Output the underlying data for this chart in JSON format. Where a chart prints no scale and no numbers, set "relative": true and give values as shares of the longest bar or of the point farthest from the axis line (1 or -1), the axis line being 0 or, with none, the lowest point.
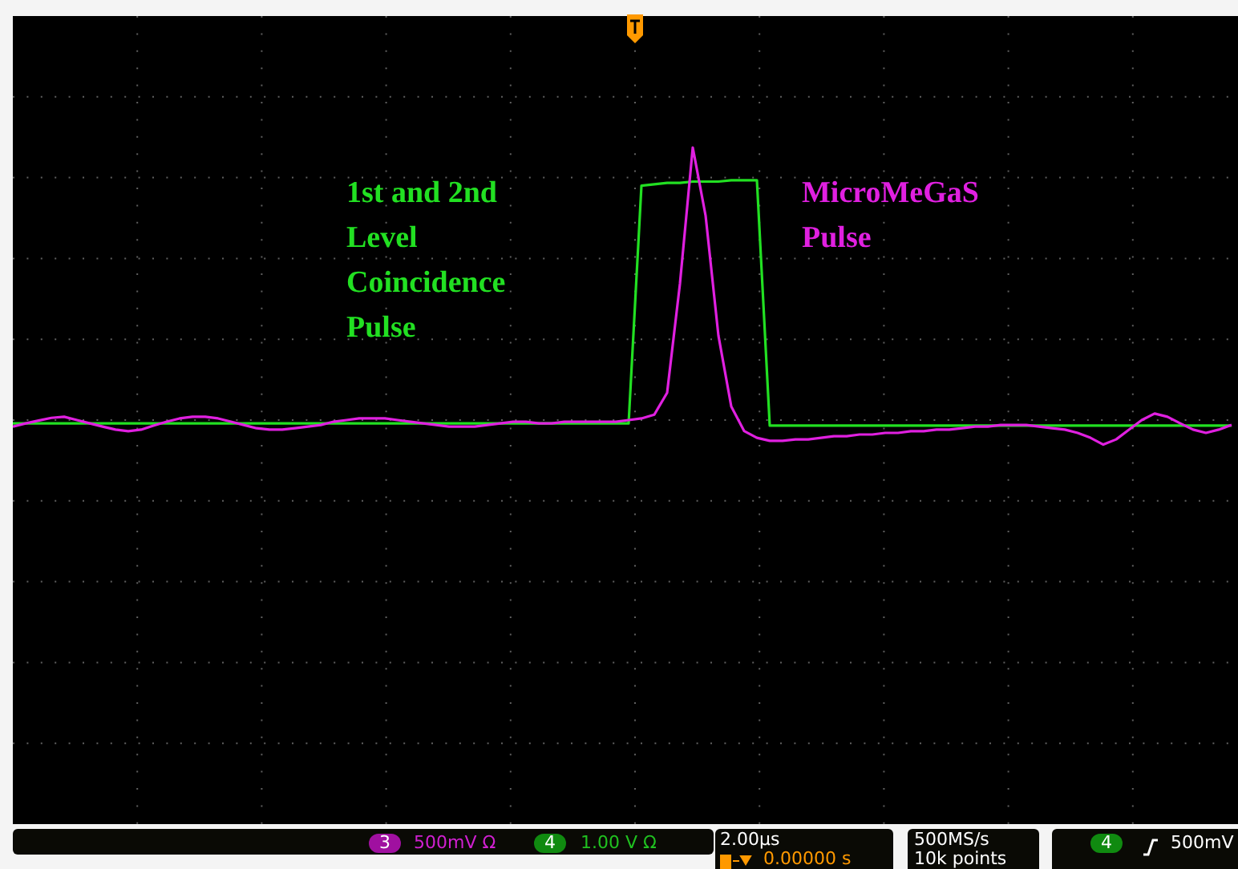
{
  "chart_data": {
    "type": "line",
    "relative": true,
    "grid": true,
    "legend": false,
    "marker": "none",
    "line_style": "solid",
    "categories": [
      null,
      null,
      null,
      null,
      null,
      null,
      null,
      null,
      null,
      null,
      null,
      null,
      null,
      null,
      null,
      null,
      null,
      null,
      null,
      null,
      null,
      null,
      null,
      null,
      null,
      null,
      null,
      null,
      null,
      null,
      null,
      null,
      null,
      null,
      null,
      null,
      null,
      null,
      null,
      null,
      null,
      null,
      null,
      null,
      null,
      null,
      null,
      null,
      null,
      null,
      null,
      null,
      null,
      null,
      null,
      null,
      null,
      null,
      null,
      null,
      null,
      null,
      null,
      null,
      null,
      null,
      null,
      null,
      null,
      null,
      null,
      null,
      null,
      null,
      null,
      null,
      null,
      null,
      null,
      null,
      null,
      null,
      null,
      null,
      null,
      null,
      null,
      null,
      null,
      null,
      null,
      null,
      null,
      null,
      null,
      null
    ],
    "series": [
      {
        "name": "1st and 2nd Level Coincidence Pulse",
        "color": "#22e022",
        "values": [
          -0.012,
          -0.012,
          -0.012,
          -0.012,
          -0.012,
          -0.012,
          -0.012,
          -0.012,
          -0.012,
          -0.012,
          -0.012,
          -0.012,
          -0.012,
          -0.012,
          -0.012,
          -0.012,
          -0.012,
          -0.012,
          -0.012,
          -0.012,
          -0.012,
          -0.012,
          -0.012,
          -0.012,
          -0.012,
          -0.012,
          -0.012,
          -0.012,
          -0.012,
          -0.012,
          -0.012,
          -0.012,
          -0.012,
          -0.012,
          -0.012,
          -0.012,
          -0.012,
          -0.012,
          -0.012,
          -0.012,
          -0.012,
          -0.012,
          -0.012,
          -0.012,
          -0.012,
          -0.012,
          -0.012,
          -0.012,
          -0.012,
          0.86,
          0.865,
          0.87,
          0.87,
          0.875,
          0.875,
          0.875,
          0.88,
          0.88,
          0.88,
          -0.02,
          -0.02,
          -0.02,
          -0.02,
          -0.02,
          -0.02,
          -0.02,
          -0.02,
          -0.02,
          -0.02,
          -0.02,
          -0.02,
          -0.02,
          -0.02,
          -0.02,
          -0.02,
          -0.02,
          -0.02,
          -0.02,
          -0.02,
          -0.02,
          -0.02,
          -0.02,
          -0.02,
          -0.02,
          -0.02,
          -0.02,
          -0.02,
          -0.02,
          -0.02,
          -0.02,
          -0.02,
          -0.02,
          -0.02,
          -0.02,
          -0.02,
          -0.02
        ]
      },
      {
        "name": "MicroMeGaS Pulse",
        "color": "#e020e0",
        "values": [
          -0.024,
          -0.012,
          -0.002,
          0.008,
          0.012,
          0.0,
          -0.012,
          -0.024,
          -0.035,
          -0.041,
          -0.035,
          -0.02,
          -0.006,
          0.006,
          0.012,
          0.012,
          0.006,
          -0.006,
          -0.018,
          -0.03,
          -0.035,
          -0.035,
          -0.03,
          -0.024,
          -0.018,
          -0.006,
          0.0,
          0.006,
          0.006,
          0.006,
          0.0,
          -0.006,
          -0.012,
          -0.018,
          -0.024,
          -0.024,
          -0.024,
          -0.018,
          -0.012,
          -0.006,
          -0.006,
          -0.012,
          -0.012,
          -0.006,
          -0.006,
          -0.006,
          -0.006,
          -0.006,
          0.0,
          0.006,
          0.02,
          0.1,
          0.5,
          1,
          0.75,
          0.31,
          0.05,
          -0.04,
          -0.065,
          -0.076,
          -0.076,
          -0.071,
          -0.071,
          -0.065,
          -0.059,
          -0.059,
          -0.053,
          -0.053,
          -0.047,
          -0.047,
          -0.041,
          -0.041,
          -0.035,
          -0.035,
          -0.03,
          -0.024,
          -0.024,
          -0.018,
          -0.018,
          -0.018,
          -0.024,
          -0.03,
          -0.035,
          -0.047,
          -0.065,
          -0.09,
          -0.071,
          -0.035,
          0.0,
          0.024,
          0.012,
          -0.012,
          -0.035,
          -0.047,
          -0.035,
          -0.018
        ]
      }
    ],
    "annotations": [
      "3",
      "500mV Ω",
      "4",
      "1.00 V Ω",
      "2.00µs",
      "0.00000 s",
      "500MS/s",
      "10k points",
      "4",
      "500mV"
    ]
  }
}
